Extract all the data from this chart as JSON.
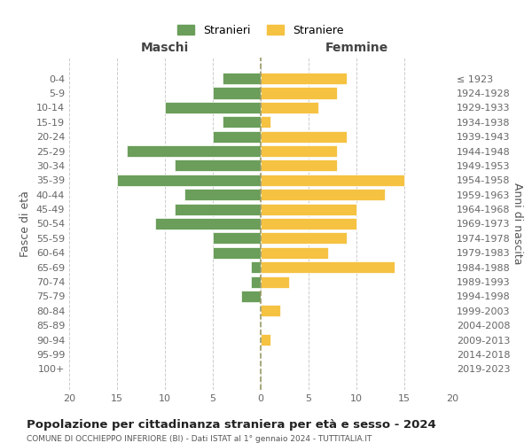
{
  "age_groups": [
    "0-4",
    "5-9",
    "10-14",
    "15-19",
    "20-24",
    "25-29",
    "30-34",
    "35-39",
    "40-44",
    "45-49",
    "50-54",
    "55-59",
    "60-64",
    "65-69",
    "70-74",
    "75-79",
    "80-84",
    "85-89",
    "90-94",
    "95-99",
    "100+"
  ],
  "birth_years": [
    "2019-2023",
    "2014-2018",
    "2009-2013",
    "2004-2008",
    "1999-2003",
    "1994-1998",
    "1989-1993",
    "1984-1988",
    "1979-1983",
    "1974-1978",
    "1969-1973",
    "1964-1968",
    "1959-1963",
    "1954-1958",
    "1949-1953",
    "1944-1948",
    "1939-1943",
    "1934-1938",
    "1929-1933",
    "1924-1928",
    "≤ 1923"
  ],
  "males": [
    4,
    5,
    10,
    4,
    5,
    14,
    9,
    15,
    8,
    9,
    11,
    5,
    5,
    1,
    1,
    2,
    0,
    0,
    0,
    0,
    0
  ],
  "females": [
    9,
    8,
    6,
    1,
    9,
    8,
    8,
    15,
    13,
    10,
    10,
    9,
    7,
    14,
    3,
    0,
    2,
    0,
    1,
    0,
    0
  ],
  "male_color": "#6a9e5a",
  "female_color": "#f5c242",
  "center_line_color": "#999966",
  "grid_color": "#cccccc",
  "bg_color": "#ffffff",
  "title": "Popolazione per cittadinanza straniera per età e sesso - 2024",
  "subtitle": "COMUNE DI OCCHIEPPO INFERIORE (BI) - Dati ISTAT al 1° gennaio 2024 - TUTTITALIA.IT",
  "xlabel_left": "Maschi",
  "xlabel_right": "Femmine",
  "ylabel_left": "Fasce di età",
  "ylabel_right": "Anni di nascita",
  "legend_male": "Stranieri",
  "legend_female": "Straniere",
  "xlim": 20
}
